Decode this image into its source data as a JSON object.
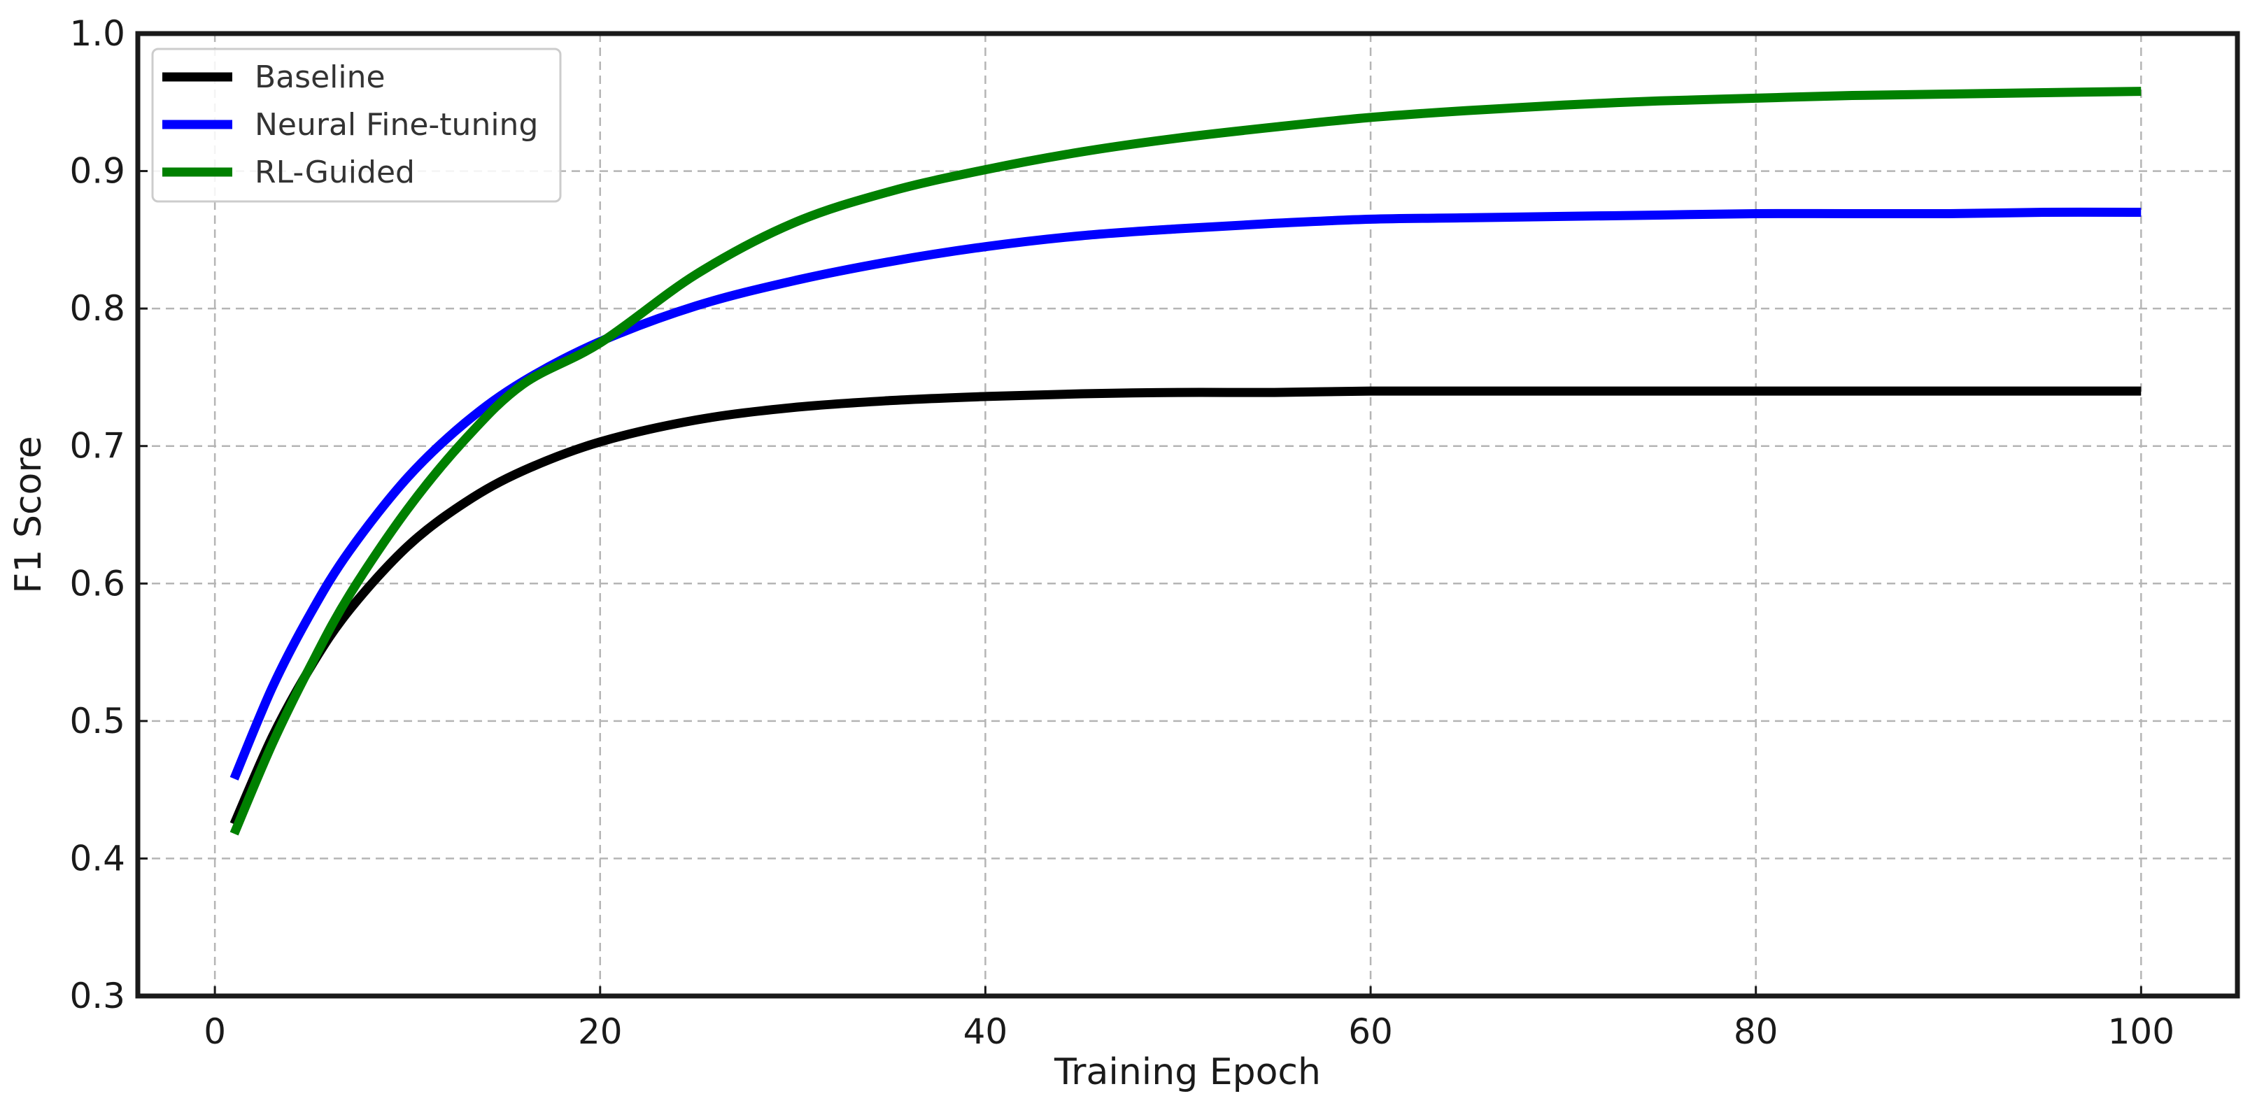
{
  "chart_data": {
    "type": "line",
    "title": "",
    "xlabel": "Training Epoch",
    "ylabel": "F1 Score",
    "xlim": [
      -4,
      105
    ],
    "ylim": [
      0.3,
      1.0
    ],
    "xticks": [
      0,
      20,
      40,
      60,
      80,
      100
    ],
    "xtick_labels": [
      "0",
      "20",
      "40",
      "60",
      "80",
      "100"
    ],
    "yticks": [
      0.3,
      0.4,
      0.5,
      0.6,
      0.7,
      0.8,
      0.9,
      1.0
    ],
    "ytick_labels": [
      "0.3",
      "0.4",
      "0.5",
      "0.6",
      "0.7",
      "0.8",
      "0.9",
      "1.0"
    ],
    "grid": true,
    "legend_position": "top-left",
    "x": [
      1,
      3,
      5,
      7,
      10,
      13,
      16,
      20,
      25,
      30,
      35,
      40,
      45,
      50,
      55,
      60,
      65,
      70,
      75,
      80,
      85,
      90,
      95,
      100
    ],
    "series": [
      {
        "name": "Baseline",
        "color": "#000000",
        "values": [
          0.425,
          0.489,
          0.54,
          0.581,
          0.627,
          0.659,
          0.682,
          0.703,
          0.719,
          0.728,
          0.733,
          0.736,
          0.738,
          0.739,
          0.739,
          0.74,
          0.74,
          0.74,
          0.74,
          0.74,
          0.74,
          0.74,
          0.74,
          0.74
        ]
      },
      {
        "name": "Neural Fine-tuning",
        "color": "#0000ff",
        "values": [
          0.458,
          0.525,
          0.579,
          0.624,
          0.677,
          0.717,
          0.747,
          0.776,
          0.802,
          0.82,
          0.834,
          0.845,
          0.853,
          0.858,
          0.862,
          0.865,
          0.866,
          0.867,
          0.868,
          0.869,
          0.869,
          0.869,
          0.87,
          0.87
        ]
      },
      {
        "name": "RL-Guided",
        "color": "#008000",
        "values": [
          0.418,
          0.484,
          0.541,
          0.592,
          0.654,
          0.705,
          0.745,
          0.775,
          0.825,
          0.862,
          0.885,
          0.901,
          0.914,
          0.924,
          0.932,
          0.939,
          0.944,
          0.948,
          0.951,
          0.953,
          0.955,
          0.956,
          0.957,
          0.958
        ]
      }
    ]
  }
}
